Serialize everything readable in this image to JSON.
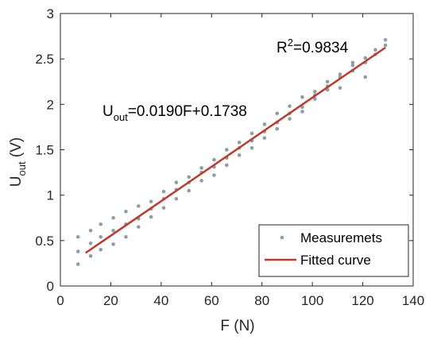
{
  "chart_data": {
    "type": "scatter",
    "xlabel": "F (N)",
    "ylabel": {
      "base": "U",
      "sub": "out",
      "rest": " (V)"
    },
    "xlim": [
      0,
      140
    ],
    "ylim": [
      0,
      3
    ],
    "xticks": [
      "0",
      "20",
      "40",
      "60",
      "80",
      "100",
      "120",
      "140"
    ],
    "yticks": [
      "0",
      "0.5",
      "1",
      "1.5",
      "2",
      "2.5",
      "3"
    ],
    "grid": false,
    "legend_position": "bottom-right",
    "colors": {
      "measurements": "#8e9ea2",
      "fit": "#c0392b"
    },
    "series": [
      {
        "name": "Measuremets",
        "kind": "scatter",
        "x": [
          7,
          7,
          7,
          12,
          12,
          12,
          16,
          16,
          16,
          21,
          21,
          21,
          26,
          26,
          26,
          31,
          31,
          31,
          36,
          36,
          36,
          41,
          41,
          41,
          46,
          46,
          46,
          51,
          51,
          51,
          56,
          56,
          56,
          61,
          61,
          61,
          66,
          66,
          66,
          71,
          71,
          71,
          76,
          76,
          76,
          81,
          81,
          81,
          86,
          86,
          86,
          91,
          91,
          91,
          96,
          96,
          96,
          101,
          101,
          101,
          106,
          106,
          106,
          111,
          111,
          111,
          116,
          116,
          116,
          121,
          121,
          121,
          125,
          125,
          129,
          129
        ],
        "y": [
          0.24,
          0.38,
          0.54,
          0.33,
          0.47,
          0.61,
          0.4,
          0.54,
          0.68,
          0.46,
          0.61,
          0.75,
          0.54,
          0.68,
          0.82,
          0.65,
          0.74,
          0.88,
          0.76,
          0.85,
          0.93,
          0.86,
          0.96,
          1.04,
          0.96,
          1.06,
          1.14,
          1.05,
          1.14,
          1.2,
          1.16,
          1.25,
          1.3,
          1.22,
          1.31,
          1.39,
          1.33,
          1.41,
          1.5,
          1.44,
          1.52,
          1.58,
          1.52,
          1.6,
          1.68,
          1.63,
          1.7,
          1.78,
          1.73,
          1.8,
          1.9,
          1.84,
          1.9,
          1.98,
          1.92,
          1.97,
          2.08,
          2.06,
          2.1,
          2.14,
          2.16,
          2.2,
          2.25,
          2.18,
          2.3,
          2.33,
          2.37,
          2.43,
          2.46,
          2.3,
          2.46,
          2.51,
          2.55,
          2.6,
          2.65,
          2.71
        ]
      },
      {
        "name": "Fitted curve",
        "kind": "line",
        "x": [
          10,
          129
        ],
        "y": [
          0.3638,
          2.6248
        ]
      }
    ],
    "annotations": [
      {
        "kind": "r2",
        "text_base": "R",
        "text_sup": "2",
        "text_rest": "=0.9834"
      },
      {
        "kind": "equation",
        "text_base": "U",
        "text_sub": "out",
        "text_rest": "=0.0190F+0.1738"
      }
    ]
  }
}
